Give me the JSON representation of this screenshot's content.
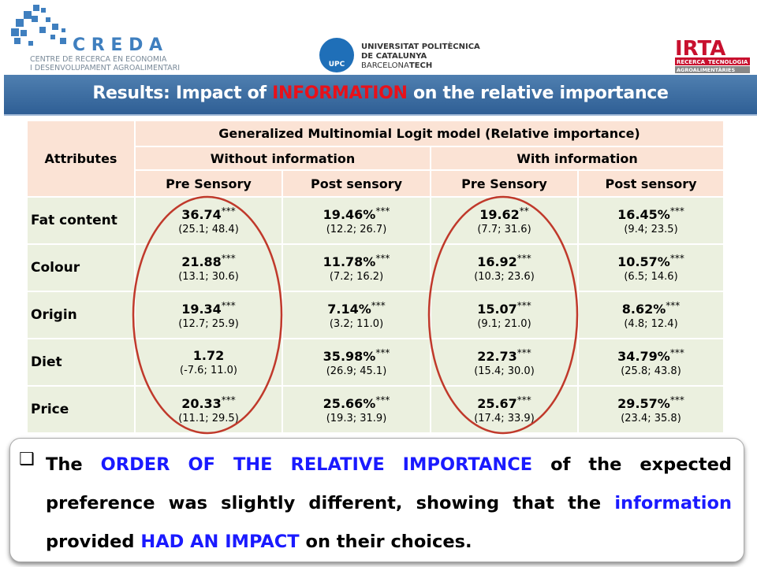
{
  "header": {
    "creda": {
      "name": "C R E D A",
      "line1": "CENTRE DE RECERCA EN ECONOMIA",
      "line2": "I DESENVOLUPAMENT AGROALIMENTARI"
    },
    "upc": {
      "mark": "UPC",
      "line1": "UNIVERSITAT POLITÈCNICA",
      "line2": "DE CATALUNYA",
      "line3a": "BARCELONA",
      "line3b": "TECH"
    },
    "irta": {
      "name": "IRTA",
      "sub1": "RECERCA",
      "sub2": "TECNOLOGIA",
      "sub3": "AGROALIMENTÀRIES"
    }
  },
  "title": {
    "before": "Results: Impact of ",
    "highlight": "INFORMATION",
    "after": " on the relative importance"
  },
  "table": {
    "corner": "Attributes",
    "model": "Generalized Multinomial Logit model (Relative importance)",
    "groups": [
      "Without information",
      "With information"
    ],
    "columns": [
      "Pre Sensory",
      "Post sensory",
      "Pre Sensory",
      "Post sensory"
    ],
    "rows": [
      {
        "label": "Fat content",
        "cells": [
          {
            "value": "36.74",
            "stars": "***",
            "ci": "(25.1; 48.4)"
          },
          {
            "value": "19.46%",
            "stars": "***",
            "ci": "(12.2; 26.7)"
          },
          {
            "value": "19.62",
            "stars": "**",
            "ci": "(7.7; 31.6)"
          },
          {
            "value": "16.45%",
            "stars": "***",
            "ci": "(9.4; 23.5)"
          }
        ]
      },
      {
        "label": "Colour",
        "cells": [
          {
            "value": "21.88",
            "stars": "***",
            "ci": "(13.1; 30.6)"
          },
          {
            "value": "11.78%",
            "stars": "***",
            "ci": "(7.2; 16.2)"
          },
          {
            "value": "16.92",
            "stars": "***",
            "ci": "(10.3; 23.6)"
          },
          {
            "value": "10.57%",
            "stars": "***",
            "ci": "(6.5; 14.6)"
          }
        ]
      },
      {
        "label": "Origin",
        "cells": [
          {
            "value": "19.34",
            "stars": "***",
            "ci": "(12.7; 25.9)"
          },
          {
            "value": "7.14%",
            "stars": "***",
            "ci": "(3.2; 11.0)"
          },
          {
            "value": "15.07",
            "stars": "***",
            "ci": "(9.1; 21.0)"
          },
          {
            "value": "8.62%",
            "stars": "***",
            "ci": "(4.8; 12.4)"
          }
        ]
      },
      {
        "label": "Diet",
        "cells": [
          {
            "value": "1.72",
            "stars": "",
            "ci": "(-7.6; 11.0)"
          },
          {
            "value": "35.98%",
            "stars": "***",
            "ci": "(26.9; 45.1)"
          },
          {
            "value": "22.73",
            "stars": "***",
            "ci": "(15.4; 30.0)"
          },
          {
            "value": "34.79%",
            "stars": "***",
            "ci": "(25.8; 43.8)"
          }
        ]
      },
      {
        "label": "Price",
        "cells": [
          {
            "value": "20.33",
            "stars": "***",
            "ci": "(11.1; 29.5)"
          },
          {
            "value": "25.66%",
            "stars": "***",
            "ci": "(19.3; 31.9)"
          },
          {
            "value": "25.67",
            "stars": "***",
            "ci": "(17.4; 33.9)"
          },
          {
            "value": "29.57%",
            "stars": "***",
            "ci": "(23.4; 35.8)"
          }
        ]
      }
    ]
  },
  "note": {
    "segments": [
      {
        "text": "The ",
        "color": "#000000"
      },
      {
        "text": "ORDER OF THE RELATIVE IMPORTANCE",
        "color": "#1a1aff"
      },
      {
        "text": " of the expected preference was slightly different, showing that the ",
        "color": "#000000"
      },
      {
        "text": "information",
        "color": "#1a1aff"
      },
      {
        "text": " provided ",
        "color": "#000000"
      },
      {
        "text": "HAD AN IMPACT",
        "color": "#1a1aff"
      },
      {
        "text": " on their choices.",
        "color": "#000000"
      }
    ]
  }
}
